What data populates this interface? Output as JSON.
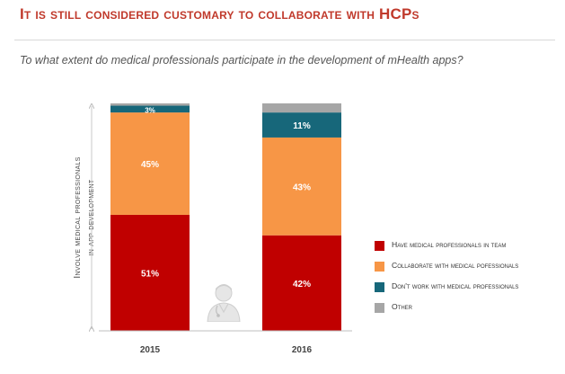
{
  "header": {
    "title": "It is still considered customary to collaborate with HCPs",
    "subtitle": "To what extent do medical professionals participate in the development of mHealth apps?"
  },
  "chart_data": {
    "type": "bar",
    "stacked": true,
    "categories": [
      "2015",
      "2016"
    ],
    "series": [
      {
        "name": "Have medical professionals in team",
        "values": [
          51,
          42
        ],
        "color": "#c00000"
      },
      {
        "name": "Collaborate with medical pofessionals",
        "values": [
          45,
          43
        ],
        "color": "#f79646"
      },
      {
        "name": "Don't work with medical professionals",
        "values": [
          3,
          11
        ],
        "color": "#17677a"
      },
      {
        "name": "Other",
        "values": [
          1,
          4
        ],
        "color": "#a6a6a6"
      }
    ],
    "data_labels": [
      [
        "51%",
        "42%"
      ],
      [
        "45%",
        "43%"
      ],
      [
        "3%",
        "11%"
      ],
      [
        "",
        ""
      ]
    ],
    "ylabel_lines": [
      "Involve medical professionals",
      "in app development"
    ],
    "ylim": [
      0,
      100
    ]
  },
  "icons": {
    "avatar": "doctor-avatar-icon"
  }
}
